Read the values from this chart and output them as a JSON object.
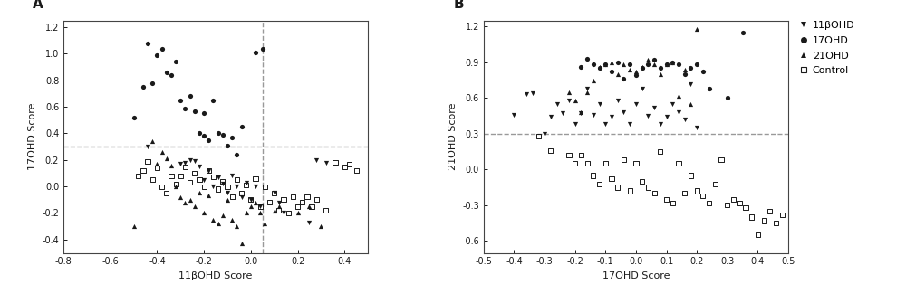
{
  "panel_A": {
    "title_label": "A",
    "xlabel": "11βOHD Score",
    "ylabel": "17OHD Score",
    "xlim": [
      -0.8,
      0.5
    ],
    "ylim": [
      -0.5,
      1.25
    ],
    "xticks": [
      -0.8,
      -0.6,
      -0.4,
      -0.2,
      0.0,
      0.2,
      0.4
    ],
    "yticks": [
      -0.4,
      -0.2,
      0.0,
      0.2,
      0.4,
      0.6,
      0.8,
      1.0,
      1.2
    ],
    "vline": 0.05,
    "hline": 0.3,
    "group_17OHD_filled": {
      "x": [
        -0.5,
        -0.46,
        -0.44,
        -0.42,
        -0.4,
        -0.38,
        -0.36,
        -0.34,
        -0.32,
        -0.3,
        -0.28,
        -0.26,
        -0.24,
        -0.22,
        -0.2,
        -0.2,
        -0.18,
        -0.16,
        -0.14,
        -0.12,
        -0.1,
        -0.08,
        -0.06,
        -0.04,
        0.02,
        0.05
      ],
      "y": [
        0.52,
        0.75,
        1.08,
        0.78,
        0.99,
        1.04,
        0.86,
        0.84,
        0.94,
        0.65,
        0.59,
        0.68,
        0.57,
        0.4,
        0.55,
        0.38,
        0.35,
        0.65,
        0.4,
        0.39,
        0.31,
        0.37,
        0.24,
        0.45,
        1.01,
        1.04
      ]
    },
    "group_21OHD_triangle": {
      "x": [
        -0.5,
        -0.42,
        -0.4,
        -0.38,
        -0.36,
        -0.34,
        -0.32,
        -0.3,
        -0.28,
        -0.26,
        -0.24,
        -0.22,
        -0.2,
        -0.18,
        -0.16,
        -0.14,
        -0.12,
        -0.1,
        -0.08,
        -0.06,
        -0.04,
        -0.02,
        0.0,
        0.02,
        0.04,
        0.06,
        0.1,
        0.12,
        0.2,
        0.25,
        0.3
      ],
      "y": [
        -0.3,
        0.34,
        0.17,
        0.26,
        0.21,
        0.16,
        0.0,
        -0.08,
        -0.12,
        -0.1,
        -0.15,
        -0.05,
        -0.2,
        -0.07,
        -0.25,
        -0.28,
        -0.22,
        -0.1,
        -0.25,
        -0.3,
        -0.43,
        -0.2,
        -0.15,
        -0.12,
        -0.2,
        -0.28,
        -0.18,
        -0.15,
        -0.2,
        -0.15,
        -0.3
      ]
    },
    "group_11bOHD_invtriangle": {
      "x": [
        -0.44,
        -0.3,
        -0.28,
        -0.26,
        -0.24,
        -0.22,
        -0.2,
        -0.18,
        -0.16,
        -0.14,
        -0.12,
        -0.1,
        -0.08,
        -0.06,
        -0.04,
        -0.02,
        0.0,
        0.02,
        0.04,
        0.1,
        0.12,
        0.14,
        0.25,
        0.28,
        0.32
      ],
      "y": [
        0.3,
        0.17,
        0.18,
        0.2,
        0.19,
        0.15,
        0.05,
        0.12,
        0.0,
        0.07,
        0.02,
        -0.05,
        0.08,
        0.0,
        -0.08,
        0.03,
        -0.1,
        0.0,
        -0.15,
        -0.05,
        -0.12,
        -0.2,
        -0.27,
        0.2,
        0.18
      ]
    },
    "group_control_opensquare": {
      "x": [
        -0.48,
        -0.46,
        -0.44,
        -0.42,
        -0.4,
        -0.38,
        -0.36,
        -0.34,
        -0.32,
        -0.3,
        -0.28,
        -0.26,
        -0.24,
        -0.22,
        -0.2,
        -0.18,
        -0.16,
        -0.14,
        -0.12,
        -0.1,
        -0.08,
        -0.06,
        -0.04,
        -0.02,
        0.0,
        0.02,
        0.04,
        0.06,
        0.08,
        0.1,
        0.12,
        0.14,
        0.16,
        0.18,
        0.2,
        0.22,
        0.24,
        0.26,
        0.28,
        0.32,
        0.36,
        0.4,
        0.42,
        0.45
      ],
      "y": [
        0.08,
        0.12,
        0.19,
        0.05,
        0.14,
        0.0,
        -0.05,
        0.08,
        0.02,
        0.08,
        0.15,
        0.03,
        0.1,
        0.05,
        0.0,
        0.12,
        0.07,
        -0.02,
        0.04,
        0.0,
        -0.08,
        0.05,
        -0.05,
        0.01,
        -0.1,
        0.06,
        -0.15,
        0.0,
        -0.12,
        -0.05,
        -0.18,
        -0.1,
        -0.2,
        -0.08,
        -0.15,
        -0.12,
        -0.08,
        -0.15,
        -0.1,
        -0.18,
        0.18,
        0.15,
        0.17,
        0.12
      ]
    }
  },
  "panel_B": {
    "title_label": "B",
    "xlabel": "17OHD Score",
    "ylabel": "21OHD Score",
    "xlim": [
      -0.5,
      0.5
    ],
    "ylim": [
      -0.7,
      1.25
    ],
    "xticks": [
      -0.5,
      -0.4,
      -0.3,
      -0.2,
      -0.1,
      0.0,
      0.1,
      0.2,
      0.3,
      0.4,
      0.5
    ],
    "yticks": [
      -0.6,
      -0.3,
      0.0,
      0.3,
      0.6,
      0.9,
      1.2
    ],
    "hline": 0.3,
    "group_11bOHD_invtriangle": {
      "x": [
        -0.4,
        -0.36,
        -0.34,
        -0.3,
        -0.28,
        -0.26,
        -0.24,
        -0.22,
        -0.2,
        -0.18,
        -0.16,
        -0.14,
        -0.12,
        -0.1,
        -0.08,
        -0.06,
        -0.04,
        -0.02,
        0.0,
        0.02,
        0.04,
        0.06,
        0.08,
        0.1,
        0.12,
        0.14,
        0.16,
        0.18,
        0.2
      ],
      "y": [
        0.46,
        0.63,
        0.64,
        0.3,
        0.44,
        0.55,
        0.47,
        0.58,
        0.38,
        0.47,
        0.68,
        0.46,
        0.55,
        0.38,
        0.44,
        0.58,
        0.48,
        0.38,
        0.55,
        0.68,
        0.45,
        0.52,
        0.38,
        0.44,
        0.55,
        0.48,
        0.42,
        0.72,
        0.35
      ]
    },
    "group_17OHD_filled": {
      "x": [
        -0.18,
        -0.16,
        -0.14,
        -0.12,
        -0.1,
        -0.08,
        -0.06,
        -0.04,
        -0.02,
        0.0,
        0.02,
        0.04,
        0.06,
        0.08,
        0.1,
        0.12,
        0.14,
        0.16,
        0.18,
        0.2,
        0.22,
        0.24,
        0.3,
        0.35
      ],
      "y": [
        0.86,
        0.93,
        0.88,
        0.85,
        0.88,
        0.82,
        0.9,
        0.76,
        0.88,
        0.79,
        0.85,
        0.88,
        0.92,
        0.85,
        0.88,
        0.9,
        0.88,
        0.8,
        0.85,
        0.88,
        0.82,
        0.68,
        0.6,
        1.15
      ]
    },
    "group_21OHD_triangle": {
      "x": [
        -0.22,
        -0.2,
        -0.18,
        -0.16,
        -0.14,
        -0.12,
        -0.1,
        -0.08,
        -0.06,
        -0.04,
        -0.02,
        0.0,
        0.02,
        0.04,
        0.06,
        0.08,
        0.1,
        0.12,
        0.14,
        0.16,
        0.18,
        0.2
      ],
      "y": [
        0.65,
        0.58,
        0.48,
        0.65,
        0.75,
        0.86,
        0.88,
        0.9,
        0.8,
        0.88,
        0.84,
        0.82,
        0.86,
        0.92,
        0.88,
        0.8,
        0.88,
        0.9,
        0.62,
        0.84,
        0.55,
        1.18
      ]
    },
    "group_control_opensquare": {
      "x": [
        -0.32,
        -0.28,
        -0.22,
        -0.2,
        -0.18,
        -0.16,
        -0.14,
        -0.12,
        -0.1,
        -0.08,
        -0.06,
        -0.04,
        -0.02,
        0.0,
        0.02,
        0.04,
        0.06,
        0.08,
        0.1,
        0.12,
        0.14,
        0.16,
        0.18,
        0.2,
        0.22,
        0.24,
        0.26,
        0.28,
        0.3,
        0.32,
        0.34,
        0.36,
        0.38,
        0.4,
        0.42,
        0.44,
        0.46,
        0.48
      ],
      "y": [
        0.28,
        0.16,
        0.12,
        0.05,
        0.12,
        0.05,
        -0.05,
        -0.12,
        0.05,
        -0.08,
        -0.15,
        0.08,
        -0.18,
        0.05,
        -0.1,
        -0.15,
        -0.2,
        0.15,
        -0.25,
        -0.28,
        0.05,
        -0.2,
        -0.05,
        -0.18,
        -0.22,
        -0.28,
        -0.12,
        0.08,
        -0.3,
        -0.25,
        -0.28,
        -0.32,
        -0.4,
        -0.55,
        -0.43,
        -0.35,
        -0.45,
        -0.38
      ]
    }
  },
  "legend_labels": [
    "11βOHD",
    "17OHD",
    "21OHD",
    "Control"
  ],
  "color": "#1a1a1a",
  "dashed_line_color": "#999999",
  "background_color": "#ffffff"
}
